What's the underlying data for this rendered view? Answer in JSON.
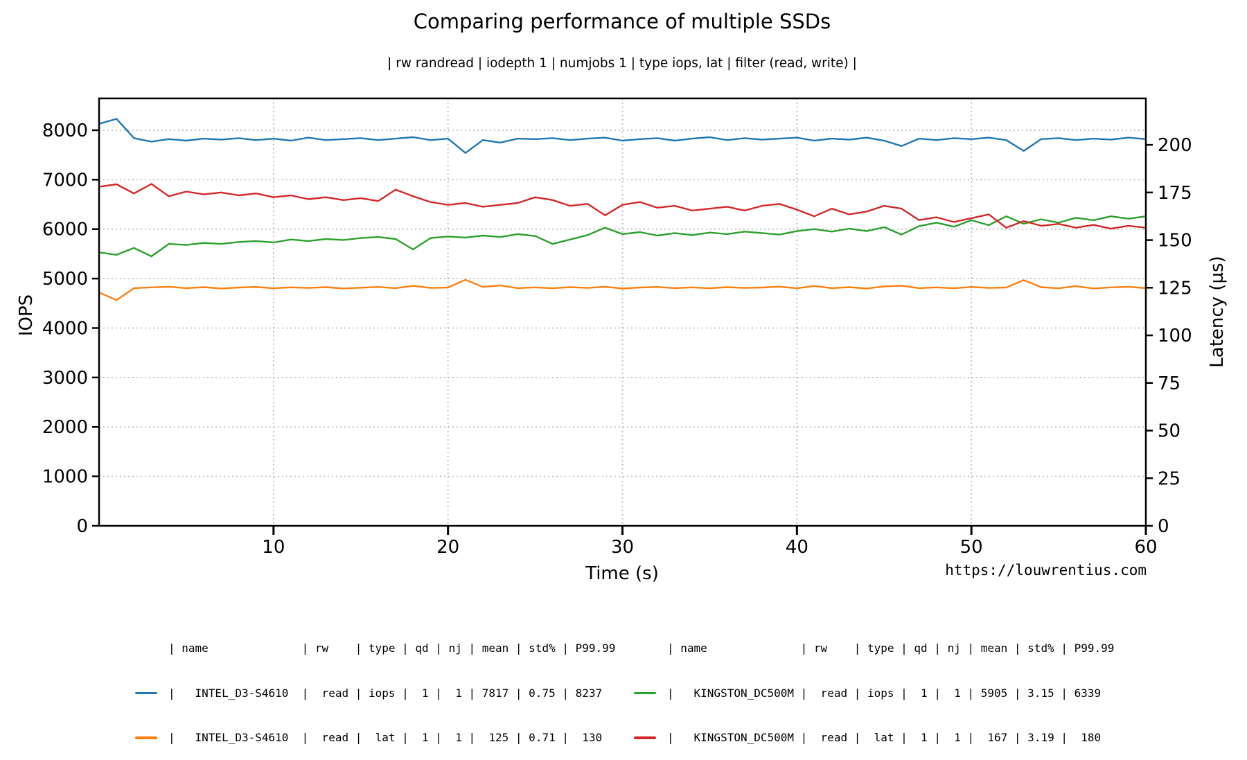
{
  "title": "Comparing performance of multiple SSDs",
  "subtitle": "| rw randread | iodepth 1 | numjobs 1 | type iops, lat | filter (read, write) |",
  "watermark": "https://louwrentius.com",
  "chart_data": {
    "type": "line",
    "title": "Comparing performance of multiple SSDs",
    "xlabel": "Time (s)",
    "ylabel_left": "IOPS",
    "ylabel_right": "Latency (µs)",
    "xlim": [
      0,
      60
    ],
    "ylim_left": [
      0,
      8644
    ],
    "ylim_right": [
      0,
      224.4
    ],
    "xticks": [
      10,
      20,
      30,
      40,
      50,
      60
    ],
    "yticks_left": [
      0,
      1000,
      2000,
      3000,
      4000,
      5000,
      6000,
      7000,
      8000
    ],
    "yticks_right": [
      0,
      25,
      50,
      75,
      100,
      125,
      150,
      175,
      200
    ],
    "grid": "dotted gray, horizontal on left-axis ticks, vertical on x ticks",
    "legend_position": "below plot, two column groups",
    "x": [
      0,
      1,
      2,
      3,
      4,
      5,
      6,
      7,
      8,
      9,
      10,
      11,
      12,
      13,
      14,
      15,
      16,
      17,
      18,
      19,
      20,
      21,
      22,
      23,
      24,
      25,
      26,
      27,
      28,
      29,
      30,
      31,
      32,
      33,
      34,
      35,
      36,
      37,
      38,
      39,
      40,
      41,
      42,
      43,
      44,
      45,
      46,
      47,
      48,
      49,
      50,
      51,
      52,
      53,
      54,
      55,
      56,
      57,
      58,
      59,
      60
    ],
    "series": [
      {
        "name": "INTEL_D3-S4610 read iops",
        "axis": "left",
        "color": "#1f77b4",
        "values": [
          8130,
          8230,
          7840,
          7770,
          7820,
          7790,
          7830,
          7810,
          7840,
          7800,
          7830,
          7790,
          7850,
          7800,
          7820,
          7840,
          7800,
          7830,
          7860,
          7800,
          7830,
          7540,
          7800,
          7750,
          7830,
          7820,
          7840,
          7800,
          7830,
          7850,
          7790,
          7820,
          7840,
          7790,
          7830,
          7860,
          7800,
          7840,
          7810,
          7830,
          7850,
          7790,
          7830,
          7810,
          7850,
          7790,
          7680,
          7830,
          7800,
          7840,
          7820,
          7850,
          7800,
          7580,
          7820,
          7840,
          7800,
          7830,
          7810,
          7850,
          7820
        ]
      },
      {
        "name": "INTEL_D3-S4610 read lat",
        "axis": "right",
        "color": "#ff7f0e",
        "values": [
          122.5,
          118.5,
          124.8,
          125.2,
          125.5,
          124.8,
          125.3,
          124.6,
          125.1,
          125.4,
          124.7,
          125.2,
          124.9,
          125.3,
          124.6,
          125.0,
          125.4,
          124.8,
          126.0,
          124.9,
          125.1,
          129.2,
          125.4,
          126.2,
          124.8,
          125.2,
          124.7,
          125.3,
          124.9,
          125.5,
          124.6,
          125.1,
          125.4,
          124.8,
          125.2,
          124.7,
          125.3,
          124.9,
          125.1,
          125.6,
          124.7,
          125.9,
          124.8,
          125.3,
          124.6,
          125.7,
          126.1,
          124.8,
          125.2,
          124.7,
          125.4,
          124.9,
          125.1,
          129.0,
          125.3,
          124.7,
          125.8,
          124.6,
          125.2,
          125.5,
          124.8
        ]
      },
      {
        "name": "KINGSTON_DC500M read iops",
        "axis": "left",
        "color": "#2ca02c",
        "values": [
          5530,
          5480,
          5620,
          5450,
          5700,
          5680,
          5720,
          5700,
          5740,
          5760,
          5730,
          5790,
          5760,
          5800,
          5780,
          5820,
          5840,
          5800,
          5590,
          5820,
          5850,
          5830,
          5870,
          5840,
          5900,
          5860,
          5700,
          5790,
          5880,
          6030,
          5900,
          5940,
          5870,
          5920,
          5880,
          5930,
          5900,
          5950,
          5920,
          5890,
          5960,
          6000,
          5950,
          6010,
          5960,
          6040,
          5890,
          6060,
          6130,
          6050,
          6180,
          6080,
          6260,
          6110,
          6200,
          6130,
          6230,
          6180,
          6260,
          6210,
          6260
        ]
      },
      {
        "name": "KINGSTON_DC500M read lat",
        "axis": "right",
        "color": "#d62728",
        "values": [
          178.0,
          179.3,
          174.5,
          179.5,
          173.0,
          175.5,
          174.0,
          175.0,
          173.5,
          174.5,
          172.5,
          173.5,
          171.5,
          172.5,
          171.0,
          172.0,
          170.5,
          176.5,
          173.0,
          170.0,
          168.5,
          169.5,
          167.5,
          168.5,
          169.5,
          172.5,
          171.0,
          168.0,
          169.0,
          163.0,
          168.5,
          170.0,
          167.0,
          168.0,
          165.5,
          166.5,
          167.5,
          165.5,
          168.0,
          169.0,
          166.0,
          162.5,
          166.5,
          163.5,
          165.0,
          168.0,
          166.5,
          160.5,
          162.0,
          159.5,
          161.5,
          163.5,
          156.5,
          160.0,
          157.5,
          158.5,
          156.5,
          158.0,
          156.0,
          157.5,
          156.5
        ]
      }
    ]
  },
  "legend": {
    "columns": [
      "name",
      "rw",
      "type",
      "qd",
      "nj",
      "mean",
      "std%",
      "P99.99"
    ],
    "table_rows": [
      {
        "name": "INTEL_D3-S4610",
        "rw": "read",
        "type": "iops",
        "qd": "1",
        "nj": "1",
        "mean": "7817",
        "std": "0.75",
        "p9999": "8237",
        "color": "#1f77b4"
      },
      {
        "name": "INTEL_D3-S4610",
        "rw": "read",
        "type": "lat",
        "qd": "1",
        "nj": "1",
        "mean": "125",
        "std": "0.71",
        "p9999": "130",
        "color": "#ff7f0e"
      },
      {
        "name": "KINGSTON_DC500M",
        "rw": "read",
        "type": "iops",
        "qd": "1",
        "nj": "1",
        "mean": "5905",
        "std": "3.15",
        "p9999": "6339",
        "color": "#2ca02c"
      },
      {
        "name": "KINGSTON_DC500M",
        "rw": "read",
        "type": "lat",
        "qd": "1",
        "nj": "1",
        "mean": "167",
        "std": "3.19",
        "p9999": "180",
        "color": "#d62728"
      }
    ],
    "header": "| name              | rw    | type | qd | nj | mean | std% | P99.99",
    "left": {
      "rows": [
        {
          "color": "#1f77b4",
          "text": "|   INTEL_D3-S4610  |  read | iops |  1 |  1 | 7817 | 0.75 | 8237"
        },
        {
          "color": "#ff7f0e",
          "text": "|   INTEL_D3-S4610  |  read |  lat |  1 |  1 |  125 | 0.71 |  130"
        }
      ]
    },
    "right": {
      "rows": [
        {
          "color": "#2ca02c",
          "text": "|   KINGSTON_DC500M |  read | iops |  1 |  1 | 5905 | 3.15 | 6339"
        },
        {
          "color": "#d62728",
          "text": "|   KINGSTON_DC500M |  read |  lat |  1 |  1 |  167 | 3.19 |  180"
        }
      ]
    }
  }
}
